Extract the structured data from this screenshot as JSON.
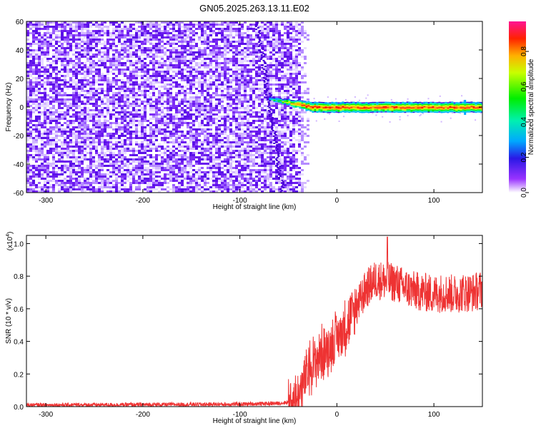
{
  "title": "GN05.2025.263.13.11.E02",
  "chart_data": [
    {
      "type": "heatmap",
      "xlabel": "Height of straight line (km)",
      "ylabel": "Frequency (Hz)",
      "xlim": [
        -320,
        150
      ],
      "ylim": [
        -60,
        60
      ],
      "x_ticks": [
        -300,
        -200,
        -100,
        0,
        100
      ],
      "y_ticks": [
        -60,
        -40,
        -20,
        0,
        20,
        40,
        60
      ],
      "noise_region_x": [
        -320,
        -35
      ],
      "signal_band": {
        "x_start": -70,
        "x_end": 150,
        "center_freq": 0,
        "end_freq_at_start": 6,
        "peak_amplitude": 0.95
      },
      "colorbar": {
        "label": "Normalized spectral amplitude",
        "ticks": [
          "0.0",
          "0.2",
          "0.4",
          "0.6",
          "0.8"
        ],
        "range": [
          0,
          0.97
        ]
      }
    },
    {
      "type": "line",
      "xlabel": "Height of straight line (km)",
      "ylabel": "SNR (10 * v/v)",
      "exponent_label": "(x10",
      "exponent_power": "4",
      "exponent_close": ")",
      "xlim": [
        -320,
        150
      ],
      "ylim": [
        0,
        1.05
      ],
      "x_ticks": [
        -300,
        -200,
        -100,
        0,
        100
      ],
      "y_ticks": [
        "0.0",
        "0.2",
        "0.4",
        "0.6",
        "0.8",
        "1.0"
      ],
      "series_color": "#ee3333",
      "trend": {
        "x": [
          -320,
          -200,
          -100,
          -60,
          -45,
          -40,
          -35,
          -30,
          -20,
          -10,
          0,
          10,
          20,
          30,
          40,
          50,
          60,
          70,
          80,
          90,
          100,
          110,
          120,
          130,
          140,
          150
        ],
        "y": [
          0.01,
          0.012,
          0.015,
          0.02,
          0.03,
          0.05,
          0.13,
          0.22,
          0.3,
          0.35,
          0.42,
          0.5,
          0.6,
          0.72,
          0.78,
          0.77,
          0.76,
          0.73,
          0.71,
          0.7,
          0.69,
          0.7,
          0.69,
          0.7,
          0.7,
          0.72
        ]
      },
      "peak": {
        "x": 52,
        "y": 1.04
      }
    }
  ]
}
